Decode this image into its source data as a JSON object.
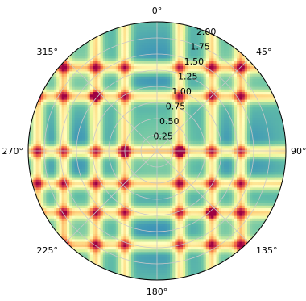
{
  "chart_data": {
    "type": "heatmap",
    "projection": "polar",
    "theta_zero_location": "top",
    "theta_direction": "clockwise",
    "theta_tick_labels": [
      "0°",
      "45°",
      "90°",
      "135°",
      "180°",
      "225°",
      "270°",
      "315°"
    ],
    "theta_tick_degrees": [
      0,
      45,
      90,
      135,
      180,
      225,
      270,
      315
    ],
    "r_tick_labels": [
      "0.25",
      "0.50",
      "0.75",
      "1.00",
      "1.25",
      "1.50",
      "1.75",
      "2.00"
    ],
    "r_tick_values": [
      0.25,
      0.5,
      0.75,
      1.0,
      1.25,
      1.5,
      1.75,
      2.0
    ],
    "rlim": [
      0,
      2.0
    ],
    "r_label_position_deg": 22.5,
    "grid": true,
    "colormap": "Spectral_r",
    "colormap_colors": [
      "#5e4fa2",
      "#3288bd",
      "#66c2a5",
      "#abdda4",
      "#e6f598",
      "#ffffbf",
      "#fee08b",
      "#fdae61",
      "#f46d43",
      "#d53e4f",
      "#9e0142"
    ],
    "hot_spots": [
      {
        "x": -0.5,
        "y": 0.0
      },
      {
        "x": 0.35,
        "y": 0.0
      },
      {
        "x": -0.95,
        "y": 0.85
      },
      {
        "x": 0.85,
        "y": -0.95
      }
    ],
    "band_lines_x": [
      -1.85,
      -1.45,
      -0.95,
      -0.5,
      0.35,
      0.85,
      1.3
    ],
    "band_lines_y": [
      1.3,
      0.85,
      0.0,
      -0.5,
      -0.95,
      -1.45
    ]
  }
}
